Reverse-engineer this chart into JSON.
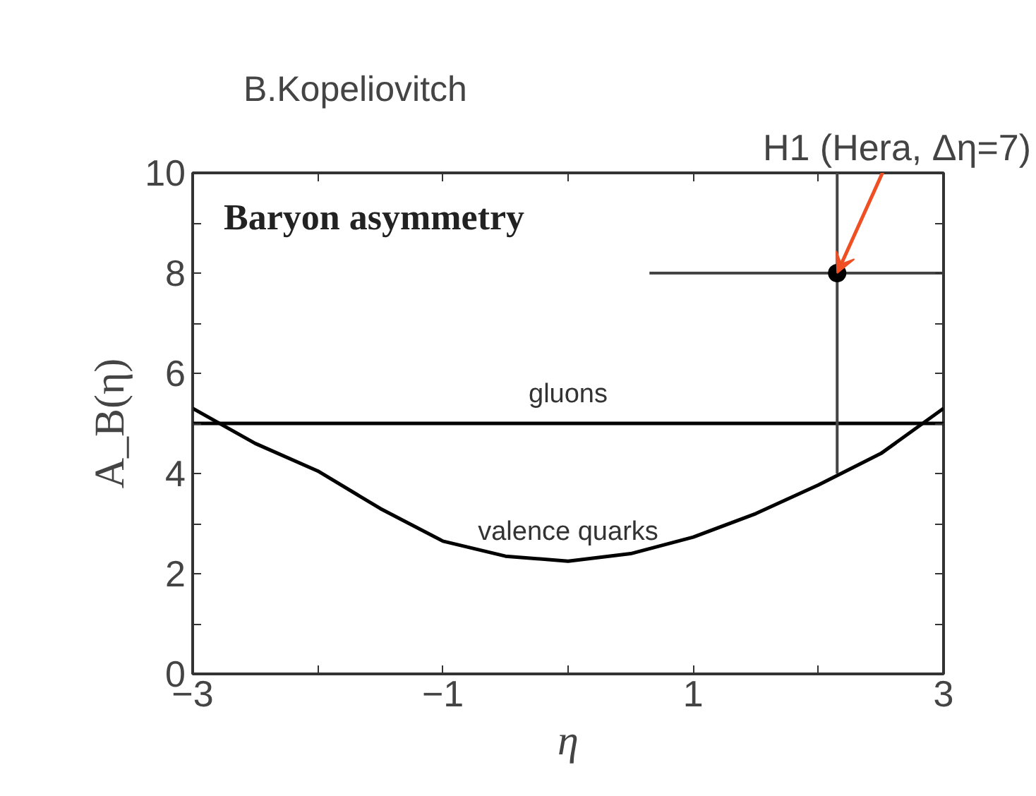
{
  "chart_data": {
    "type": "line",
    "title": "Baryon asymmetry",
    "xlabel": "η",
    "ylabel": "A_B(η)",
    "xlim": [
      -3,
      3
    ],
    "ylim": [
      0,
      10
    ],
    "xticks": [
      -3,
      {
        "value": -2,
        "label": null
      },
      -1,
      {
        "value": 0,
        "label": null
      },
      1,
      {
        "value": 2,
        "label": null
      },
      3
    ],
    "yticks": [
      0,
      {
        "value": 1,
        "label": null
      },
      2,
      {
        "value": 3,
        "label": null
      },
      4,
      {
        "value": 5,
        "label": null
      },
      6,
      {
        "value": 7,
        "label": null
      },
      8,
      {
        "value": 9,
        "label": null
      },
      10
    ],
    "grid": false,
    "marker": "none",
    "line_style": "solid",
    "series": [
      {
        "name": "gluons",
        "color": "#000000",
        "x": [
          -3,
          3
        ],
        "values": [
          5,
          5
        ]
      },
      {
        "name": "valence quarks",
        "color": "#000000",
        "x": [
          -3,
          -2.5,
          -2,
          -1.5,
          -1,
          -0.5,
          0,
          0.5,
          1,
          1.5,
          2,
          2.5,
          3
        ],
        "values": [
          5.3,
          4.6,
          4.05,
          3.3,
          2.65,
          2.35,
          2.25,
          2.4,
          2.73,
          3.2,
          3.77,
          4.4,
          5.3
        ]
      },
      {
        "type": "scatter",
        "marker": "circle",
        "color": "#000000",
        "x": [
          2.15
        ],
        "values": [
          8
        ],
        "errors": [
          [
            4,
            10
          ]
        ],
        "xerrors": [
          [
            0.65,
            3
          ]
        ]
      }
    ],
    "annotations": [
      "B.Kopeliovitch",
      {
        "text": "H1 (Hera, Δη=7)",
        "x": 2.15,
        "y": 8
      }
    ]
  }
}
